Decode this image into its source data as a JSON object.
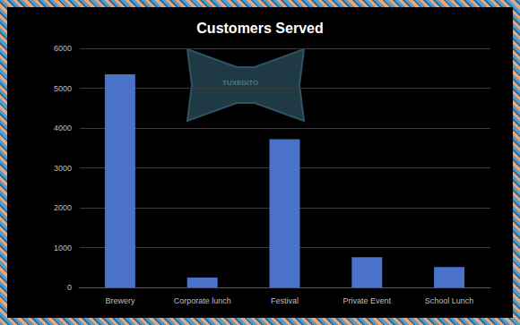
{
  "chart_data": {
    "type": "bar",
    "title": "Customers Served",
    "categories": [
      "Brewery",
      "Corporate lunch",
      "Festival",
      "Private Event",
      "School Lunch"
    ],
    "values": [
      5350,
      250,
      3720,
      760,
      510
    ],
    "color": "#4a72c8",
    "ylim": [
      0,
      6000
    ],
    "yticks": [
      0,
      1000,
      2000,
      3000,
      4000,
      5000,
      6000
    ],
    "grid": true,
    "annotations": [
      "TUXEDITO"
    ]
  }
}
